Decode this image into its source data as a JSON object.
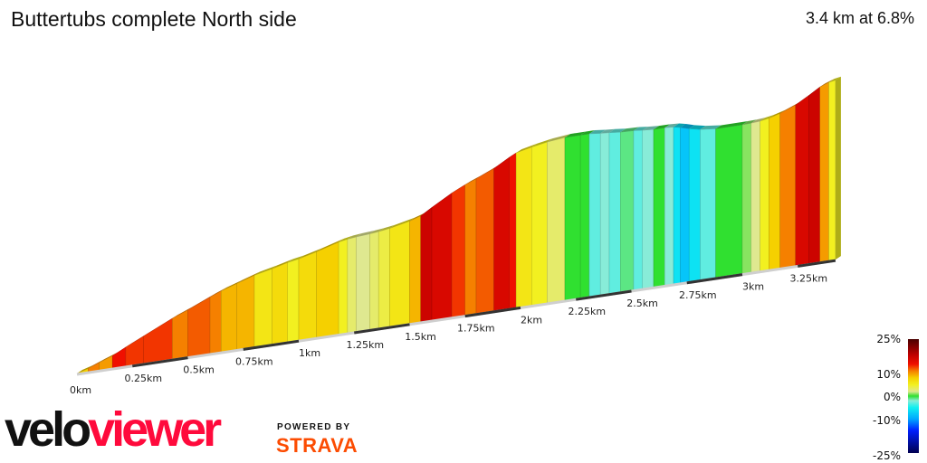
{
  "header": {
    "title": "Buttertubs complete North side",
    "summary": "3.4 km at 6.8%"
  },
  "legend": {
    "labels": [
      "25%",
      "10%",
      "0%",
      "-10%",
      "-25%"
    ],
    "stops": [
      {
        "grade": 25,
        "color": "#4a0000"
      },
      {
        "grade": 18,
        "color": "#c00000"
      },
      {
        "grade": 14,
        "color": "#f01000"
      },
      {
        "grade": 11,
        "color": "#f58000"
      },
      {
        "grade": 8,
        "color": "#f5d000"
      },
      {
        "grade": 5,
        "color": "#f2f020"
      },
      {
        "grade": 2,
        "color": "#dfe890"
      },
      {
        "grade": 0,
        "color": "#30e030"
      },
      {
        "grade": -2,
        "color": "#88ecd8"
      },
      {
        "grade": -5,
        "color": "#10f0f0"
      },
      {
        "grade": -10,
        "color": "#00a8ff"
      },
      {
        "grade": -15,
        "color": "#0020ff"
      },
      {
        "grade": -25,
        "color": "#000050"
      }
    ]
  },
  "chart_data": {
    "type": "area",
    "title": "Buttertubs complete North side",
    "xlabel": "",
    "ylabel": "",
    "x_unit": "km",
    "xlim": [
      0,
      3.42
    ],
    "x_ticks": [
      "0km",
      "0.25km",
      "0.5km",
      "0.75km",
      "1km",
      "1.25km",
      "1.5km",
      "1.75km",
      "2km",
      "2.25km",
      "2.5km",
      "2.75km",
      "3km",
      "3.25km"
    ],
    "x_tick_values": [
      0,
      0.25,
      0.5,
      0.75,
      1,
      1.25,
      1.5,
      1.75,
      2,
      2.25,
      2.5,
      2.75,
      3,
      3.25
    ],
    "segments_end_km": [
      0.05,
      0.1,
      0.16,
      0.22,
      0.3,
      0.43,
      0.5,
      0.6,
      0.65,
      0.72,
      0.8,
      0.88,
      0.95,
      1.0,
      1.08,
      1.18,
      1.22,
      1.26,
      1.32,
      1.36,
      1.41,
      1.5,
      1.55,
      1.6,
      1.69,
      1.75,
      1.8,
      1.88,
      1.95,
      1.98,
      2.05,
      2.12,
      2.2,
      2.27,
      2.31,
      2.36,
      2.4,
      2.45,
      2.51,
      2.55,
      2.6,
      2.65,
      2.69,
      2.72,
      2.76,
      2.81,
      2.88,
      3.0,
      3.04,
      3.08,
      3.12,
      3.17,
      3.24,
      3.3,
      3.35,
      3.39,
      3.42
    ],
    "segments_grade_pct": [
      8,
      11,
      10,
      14,
      13,
      13,
      11,
      12,
      11,
      9,
      9,
      6,
      7,
      5,
      7,
      8,
      5,
      3,
      2,
      3,
      4,
      6,
      9,
      17,
      16,
      13,
      11,
      12,
      16,
      14,
      6,
      5,
      3,
      0,
      0,
      -3,
      -2,
      -3,
      -1,
      -3,
      -2,
      0,
      -2,
      -6,
      -8,
      -6,
      -3,
      0,
      1,
      2,
      5,
      8,
      11,
      16,
      17,
      10,
      5
    ],
    "distance_km": 3.4,
    "average_grade_pct": 6.8,
    "grid": false,
    "legend": "right"
  },
  "branding": {
    "logo_a": "velo",
    "logo_b": "viewer",
    "powered": "POWERED BY",
    "strava": "STRAVA"
  }
}
